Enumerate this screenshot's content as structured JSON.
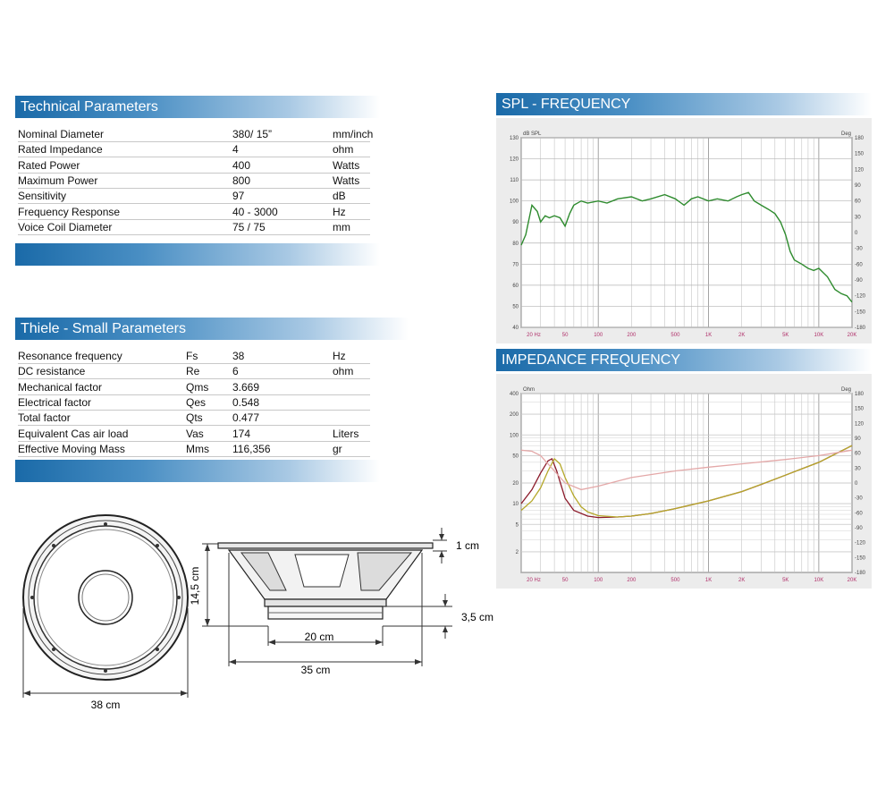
{
  "technical": {
    "title": "Technical Parameters",
    "rows": [
      {
        "name": "Nominal Diameter",
        "value": "380/ 15”",
        "unit": "mm/inch"
      },
      {
        "name": "Rated Impedance",
        "value": "4",
        "unit": "ohm"
      },
      {
        "name": "Rated Power",
        "value": "400",
        "unit": "Watts"
      },
      {
        "name": "Maximum Power",
        "value": "800",
        "unit": "Watts"
      },
      {
        "name": "Sensitivity",
        "value": "97",
        "unit": "dB"
      },
      {
        "name": "Frequency Response",
        "value": "40 - 3000",
        "unit": "Hz"
      },
      {
        "name": "Voice Coil Diameter",
        "value": "75 / 75",
        "unit": "mm"
      }
    ]
  },
  "thiele": {
    "title": "Thiele - Small Parameters",
    "rows": [
      {
        "name": "Resonance frequency",
        "symbol": "Fs",
        "value": "38",
        "unit": "Hz"
      },
      {
        "name": "DC resistance",
        "symbol": "Re",
        "value": "6",
        "unit": "ohm"
      },
      {
        "name": "Mechanical factor",
        "symbol": "Qms",
        "value": "3.669",
        "unit": ""
      },
      {
        "name": "Electrical factor",
        "symbol": "Qes",
        "value": "0.548",
        "unit": ""
      },
      {
        "name": "Total factor",
        "symbol": "Qts",
        "value": "0.477",
        "unit": ""
      },
      {
        "name": "Equivalent Cas air load",
        "symbol": "Vas",
        "value": "174",
        "unit": "Liters"
      },
      {
        "name": "Effective Moving Mass",
        "symbol": "Mms",
        "value": "116,356",
        "unit": "gr"
      }
    ]
  },
  "dimensions": {
    "front_diameter": "38 cm",
    "height": "14,5 cm",
    "flange": "1 cm",
    "magnet_height": "3,5 cm",
    "magnet_diameter": "20 cm",
    "body_diameter": "35 cm"
  },
  "colors": {
    "banner": "#1a6aa8",
    "spl_curve": "#2e8b2e",
    "imp_dark_red": "#8b1a2a",
    "imp_olive": "#b5a82a",
    "imp_pink": "#e4a8a8"
  },
  "chart_data": [
    {
      "type": "line",
      "title": "SPL - FREQUENCY",
      "ylabel": "dB SPL",
      "y2label": "Deg",
      "xscale": "log",
      "xlim": [
        20,
        20000
      ],
      "ylim": [
        40,
        130
      ],
      "y2lim": [
        -180,
        180
      ],
      "x_ticks": [
        "20 Hz",
        "50",
        "100",
        "200",
        "500",
        "1K",
        "2K",
        "5K",
        "10K",
        "20K"
      ],
      "y_ticks": [
        "130",
        "120",
        "110",
        "100",
        "90",
        "80",
        "70",
        "60",
        "50",
        "40"
      ],
      "y2_ticks": [
        "180",
        "150",
        "120",
        "90",
        "60",
        "30",
        "0",
        "-30",
        "-60",
        "-90",
        "-120",
        "-150",
        "-180"
      ],
      "grid": true,
      "series": [
        {
          "color": "#2e8b2e",
          "x": [
            20,
            22,
            25,
            28,
            30,
            33,
            36,
            40,
            45,
            50,
            55,
            60,
            70,
            80,
            100,
            120,
            150,
            200,
            250,
            300,
            400,
            500,
            600,
            700,
            800,
            1000,
            1200,
            1500,
            1800,
            2000,
            2300,
            2600,
            3000,
            3500,
            4000,
            4500,
            5000,
            5500,
            6000,
            7000,
            8000,
            9000,
            10000,
            12000,
            14000,
            16000,
            18000,
            20000
          ],
          "y": [
            79,
            84,
            98,
            95,
            90,
            93,
            92,
            93,
            92,
            88,
            94,
            98,
            100,
            99,
            100,
            99,
            101,
            102,
            100,
            101,
            103,
            101,
            98,
            101,
            102,
            100,
            101,
            100,
            102,
            103,
            104,
            100,
            98,
            96,
            94,
            90,
            84,
            76,
            72,
            70,
            68,
            67,
            68,
            64,
            58,
            56,
            55,
            52
          ]
        }
      ]
    },
    {
      "type": "line",
      "title": "IMPEDANCE FREQUENCY",
      "ylabel": "Ohm",
      "y2label": "Deg",
      "xscale": "log",
      "yscale": "log",
      "xlim": [
        20,
        20000
      ],
      "ylim": [
        1,
        400
      ],
      "y2lim": [
        -180,
        180
      ],
      "x_ticks": [
        "20 Hz",
        "50",
        "100",
        "200",
        "500",
        "1K",
        "2K",
        "5K",
        "10K",
        "20K"
      ],
      "y_ticks": [
        "400",
        "200",
        "100",
        "50",
        "20",
        "10",
        "5",
        "2"
      ],
      "y2_ticks": [
        "180",
        "150",
        "120",
        "90",
        "60",
        "30",
        "0",
        "-30",
        "-60",
        "-90",
        "-120",
        "-150",
        "-180"
      ],
      "grid": true,
      "series": [
        {
          "color": "#8b1a2a",
          "x": [
            20,
            25,
            30,
            35,
            38,
            42,
            50,
            60,
            80,
            100,
            150,
            200,
            300,
            500,
            1000,
            2000,
            3000,
            5000,
            10000,
            20000
          ],
          "y": [
            10,
            16,
            28,
            42,
            45,
            30,
            12,
            8,
            6.6,
            6.3,
            6.4,
            6.6,
            7.2,
            8.5,
            11,
            15,
            19,
            26,
            40,
            70
          ]
        },
        {
          "color": "#b5a82a",
          "x": [
            20,
            25,
            30,
            35,
            40,
            45,
            50,
            60,
            70,
            80,
            100,
            150,
            200,
            300,
            500,
            1000,
            2000,
            5000,
            10000,
            20000
          ],
          "y": [
            8,
            11,
            17,
            30,
            45,
            38,
            24,
            13,
            9,
            7.6,
            6.7,
            6.4,
            6.6,
            7.2,
            8.5,
            11,
            15,
            26,
            40,
            70
          ]
        },
        {
          "color": "#e4a8a8",
          "x": [
            20,
            25,
            30,
            40,
            50,
            70,
            100,
            200,
            500,
            1000,
            2000,
            5000,
            10000,
            20000
          ],
          "y": [
            60,
            58,
            50,
            30,
            20,
            16,
            18,
            24,
            30,
            34,
            38,
            44,
            50,
            60
          ]
        }
      ]
    }
  ]
}
